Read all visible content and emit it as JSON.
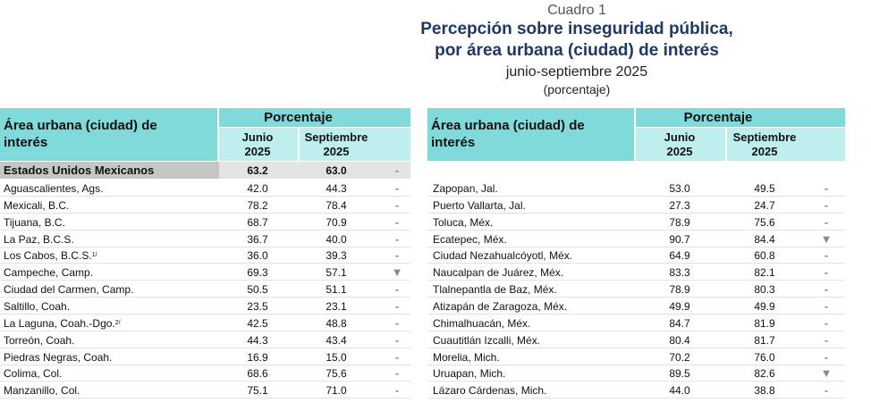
{
  "header": {
    "number": "Cuadro 1",
    "title": [
      "Percepción sobre inseguridad pública,",
      "por área urbana (ciudad) de interés"
    ],
    "period": "junio-septiembre 2025",
    "unit": "(porcentaje)"
  },
  "left_table": {
    "columns": {
      "name": "Área urbana (ciudad) de interés",
      "group": "Porcentaje",
      "junio": {
        "month": "Junio",
        "year": "2025"
      },
      "septiembre": {
        "month": "Septiembre",
        "year": "2025"
      }
    },
    "national": {
      "name": "Estados Unidos Mexicanos",
      "junio": "63.2",
      "septiembre": "63.0",
      "trend": "-"
    },
    "rows": [
      {
        "name": "Aguascalientes, Ags.",
        "junio": "42.0",
        "septiembre": "44.3",
        "trend": "-"
      },
      {
        "name": "Mexicali, B.C.",
        "junio": "78.2",
        "septiembre": "78.4",
        "trend": "-"
      },
      {
        "name": "Tijuana, B.C.",
        "junio": "68.7",
        "septiembre": "70.9",
        "trend": "-"
      },
      {
        "name": "La Paz, B.C.S.",
        "junio": "36.7",
        "septiembre": "40.0",
        "trend": "-"
      },
      {
        "name": "Los Cabos, B.C.S.",
        "note": "1/",
        "junio": "36.0",
        "septiembre": "39.3",
        "trend": "-"
      },
      {
        "name": "Campeche, Camp.",
        "junio": "69.3",
        "septiembre": "57.1",
        "trend": "▼"
      },
      {
        "name": "Ciudad del Carmen, Camp.",
        "junio": "50.5",
        "septiembre": "51.1",
        "trend": "-"
      },
      {
        "name": "Saltillo, Coah.",
        "junio": "23.5",
        "septiembre": "23.1",
        "trend": "-"
      },
      {
        "name": "La Laguna, Coah.-Dgo.",
        "note": "2/",
        "junio": "42.5",
        "septiembre": "48.8",
        "trend": "-"
      },
      {
        "name": "Torreón, Coah.",
        "junio": "44.3",
        "septiembre": "43.4",
        "trend": "-"
      },
      {
        "name": "Piedras Negras, Coah.",
        "junio": "16.9",
        "septiembre": "15.0",
        "trend": "-"
      },
      {
        "name": "Colima, Col.",
        "junio": "68.6",
        "septiembre": "75.6",
        "trend": "-"
      },
      {
        "name": "Manzanillo, Col.",
        "junio": "75.1",
        "septiembre": "71.0",
        "trend": "-"
      }
    ]
  },
  "right_table": {
    "columns": {
      "name": "Área urbana (ciudad) de interés",
      "group": "Porcentaje",
      "junio": {
        "month": "Junio",
        "year": "2025"
      },
      "septiembre": {
        "month": "Septiembre",
        "year": "2025"
      }
    },
    "rows": [
      {
        "name": "Zapopan, Jal.",
        "junio": "53.0",
        "septiembre": "49.5",
        "trend": "-"
      },
      {
        "name": "Puerto Vallarta, Jal.",
        "junio": "27.3",
        "septiembre": "24.7",
        "trend": "-"
      },
      {
        "name": "Toluca, Méx.",
        "junio": "78.9",
        "septiembre": "75.6",
        "trend": "-"
      },
      {
        "name": "Ecatepec, Méx.",
        "junio": "90.7",
        "septiembre": "84.4",
        "trend": "▼"
      },
      {
        "name": "Ciudad Nezahualcóyotl, Méx.",
        "junio": "64.9",
        "septiembre": "60.8",
        "trend": "-"
      },
      {
        "name": "Naucalpan de Juárez, Méx.",
        "junio": "83.3",
        "septiembre": "82.1",
        "trend": "-"
      },
      {
        "name": "Tlalnepantla de Baz, Méx.",
        "junio": "78.9",
        "septiembre": "80.3",
        "trend": "-"
      },
      {
        "name": "Atizapán de Zaragoza, Méx.",
        "junio": "49.9",
        "septiembre": "49.9",
        "trend": "-"
      },
      {
        "name": "Chimalhuacán, Méx.",
        "junio": "84.7",
        "septiembre": "81.9",
        "trend": "-"
      },
      {
        "name": "Cuautitlán Izcalli, Méx.",
        "junio": "80.4",
        "septiembre": "81.7",
        "trend": "-"
      },
      {
        "name": "Morelia, Mich.",
        "junio": "70.2",
        "septiembre": "76.0",
        "trend": "-"
      },
      {
        "name": "Uruapan, Mich.",
        "junio": "89.5",
        "septiembre": "82.6",
        "trend": "▼"
      },
      {
        "name": "Lázaro Cárdenas, Mich.",
        "junio": "44.0",
        "septiembre": "38.8",
        "trend": "-"
      }
    ]
  }
}
